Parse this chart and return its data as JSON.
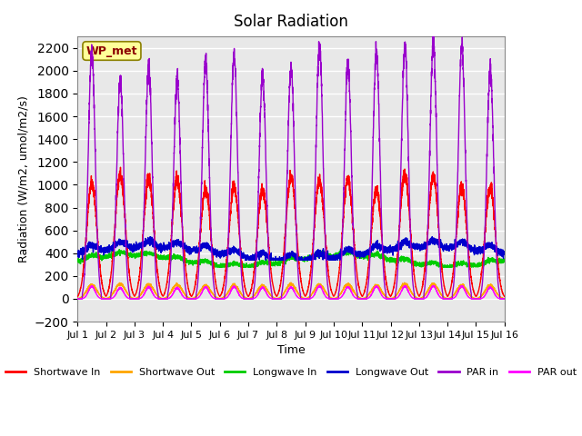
{
  "title": "Solar Radiation",
  "ylabel": "Radiation (W/m2, umol/m2/s)",
  "xlabel": "Time",
  "ylim": [
    -200,
    2300
  ],
  "yticks": [
    -200,
    0,
    200,
    400,
    600,
    800,
    1000,
    1200,
    1400,
    1600,
    1800,
    2000,
    2200
  ],
  "xlim_start": 0,
  "xlim_end": 15,
  "num_days": 15,
  "annotation_text": "WP_met",
  "annotation_color": "#8B0000",
  "annotation_bg": "#FFFF99",
  "bg_color": "#E8E8E8",
  "grid_color": "white",
  "series_colors": {
    "shortwave_in": "#FF0000",
    "shortwave_out": "#FFA500",
    "longwave_in": "#00CC00",
    "longwave_out": "#0000CC",
    "par_in": "#9900CC",
    "par_out": "#FF00FF"
  },
  "legend_labels": [
    "Shortwave In",
    "Shortwave Out",
    "Longwave In",
    "Longwave Out",
    "PAR in",
    "PAR out"
  ],
  "xtick_labels": [
    "Jul 1",
    "Jul 2",
    "Jul 3",
    "Jul 4",
    "Jul 5",
    "Jul 6",
    "Jul 7",
    "Jul 8",
    "Jul 9",
    "Jul 10",
    "Jul 11",
    "Jul 12",
    "Jul 13",
    "Jul 14",
    "Jul 15",
    "Jul 16"
  ]
}
